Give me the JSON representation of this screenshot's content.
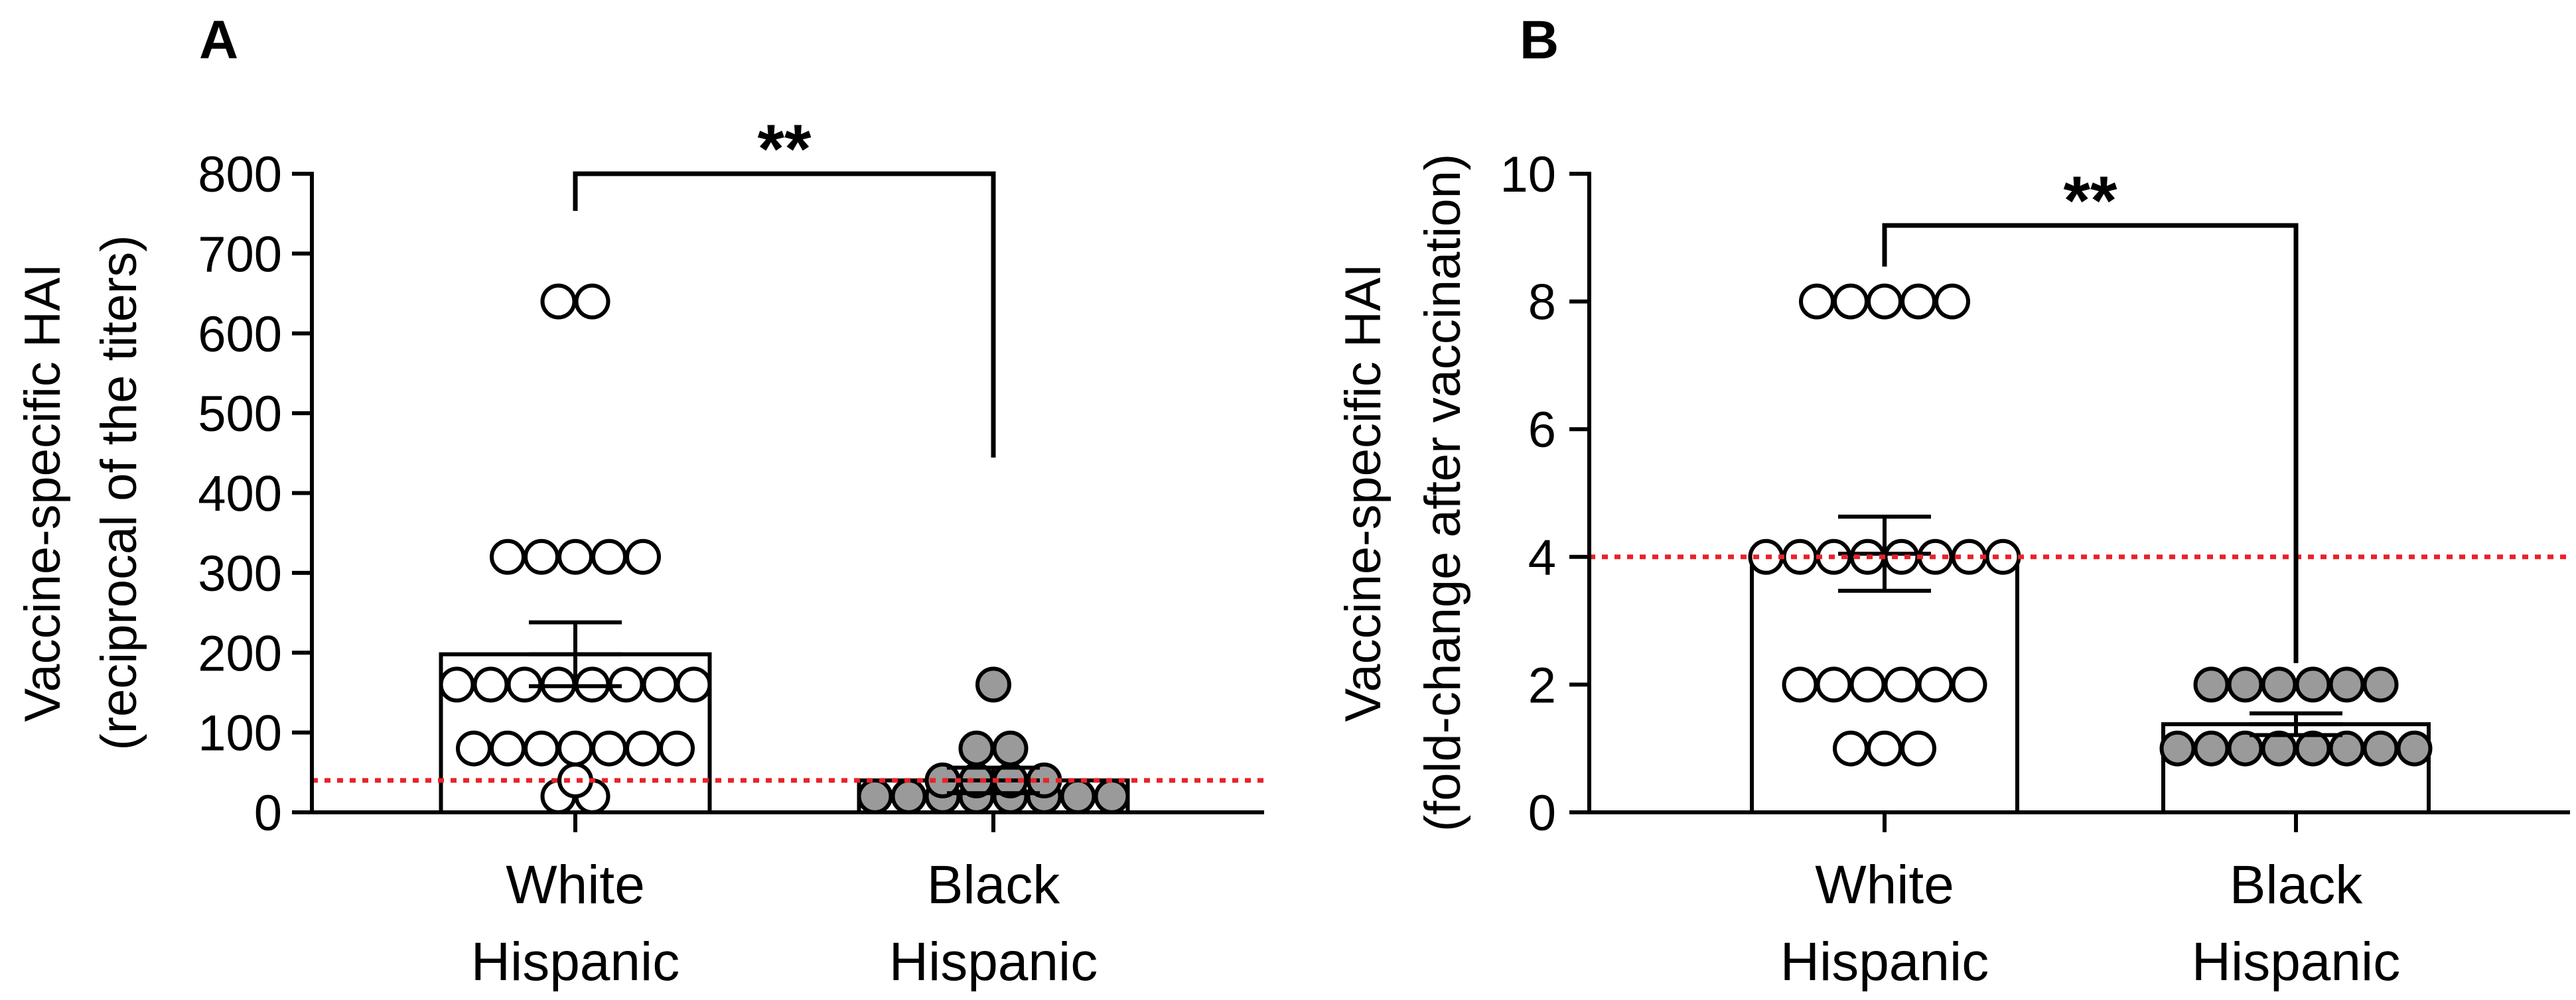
{
  "chart_data": [
    {
      "type": "bar",
      "panel_label": "A",
      "ylabel": [
        "Vaccine-specific HAI",
        "(reciprocal of the titers)"
      ],
      "categories": [
        "White\nHispanic",
        "Black\nHispanic"
      ],
      "category_lines": [
        [
          "White",
          "Hispanic"
        ],
        [
          "Black",
          "Hispanic"
        ]
      ],
      "ylim": [
        0,
        800
      ],
      "yticks": [
        0,
        100,
        200,
        300,
        400,
        500,
        600,
        700,
        800
      ],
      "reference_line": 40,
      "significance": "**",
      "bars": [
        {
          "mean": 198,
          "sem": 40,
          "marker": "open",
          "points": [
            640,
            640,
            320,
            320,
            320,
            320,
            320,
            160,
            160,
            160,
            160,
            160,
            160,
            160,
            160,
            80,
            80,
            80,
            80,
            80,
            80,
            80,
            40,
            20,
            20
          ]
        },
        {
          "mean": 40,
          "sem": 16,
          "marker": "filled",
          "points": [
            160,
            80,
            80,
            40,
            40,
            40,
            40,
            20,
            20,
            20,
            20,
            20,
            20,
            20,
            20
          ]
        }
      ]
    },
    {
      "type": "bar",
      "panel_label": "B",
      "ylabel": [
        "Vaccine-specific HAI",
        "(fold-change after vaccination)"
      ],
      "categories": [
        "White\nHispanic",
        "Black\nHispanic"
      ],
      "category_lines": [
        [
          "White",
          "Hispanic"
        ],
        [
          "Black",
          "Hispanic"
        ]
      ],
      "ylim": [
        0,
        10
      ],
      "yticks": [
        0,
        2,
        4,
        6,
        8,
        10
      ],
      "reference_line": 4,
      "significance": "**",
      "bars": [
        {
          "mean": 4.05,
          "sem": 0.58,
          "marker": "open",
          "points": [
            8,
            8,
            8,
            8,
            8,
            4,
            4,
            4,
            4,
            4,
            4,
            4,
            4,
            2,
            2,
            2,
            2,
            2,
            2,
            1,
            1,
            1
          ]
        },
        {
          "mean": 1.38,
          "sem": 0.17,
          "marker": "filled",
          "points": [
            2,
            2,
            2,
            2,
            2,
            2,
            1,
            1,
            1,
            1,
            1,
            1,
            1,
            1
          ]
        }
      ]
    }
  ],
  "colors": {
    "axis": "#000000",
    "open_fill": "#ffffff",
    "filled_fill": "#9a9a9a",
    "reference_line": "#e8222a"
  }
}
